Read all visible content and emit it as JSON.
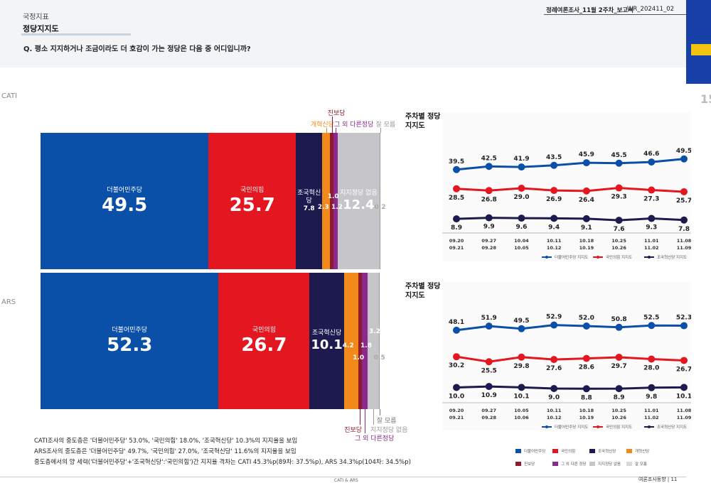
{
  "header": {
    "section_label": "국정지표",
    "section_title": "정당지지도",
    "report_name": "정례여론조사_11월 2주차_보고서",
    "report_code": "WR_202411_02",
    "question": "Q. 평소 지지하거나 조금이라도 더 호감이 가는 정당은 다음 중 어디입니까?",
    "page_number": "15"
  },
  "colors": {
    "democratic": "#0a4fa8",
    "ppp": "#e4161f",
    "rebuilding": "#1d1a4f",
    "reform": "#f28a1b",
    "progressive": "#8e1a2e",
    "other": "#8b2a8c",
    "none": "#c6c6ca",
    "dontknow": "#d9d9dc"
  },
  "chart_data": [
    {
      "type": "bar",
      "stacked": true,
      "orientation": "horizontal",
      "method": "CATI",
      "series": [
        {
          "key": "democratic",
          "name": "더불어민주당",
          "value": 49.5
        },
        {
          "key": "ppp",
          "name": "국민의힘",
          "value": 25.7
        },
        {
          "key": "rebuilding",
          "name": "조국혁신당",
          "value": 7.8
        },
        {
          "key": "reform",
          "name": "개혁신당",
          "value": 2.3
        },
        {
          "key": "progressive",
          "name": "진보당",
          "value": 1.0
        },
        {
          "key": "other",
          "name": "그 외 다른정당",
          "value": 1.2
        },
        {
          "key": "none",
          "name": "지지정당 없음",
          "value": 12.4
        },
        {
          "key": "dontknow",
          "name": "잘 모름",
          "value": 0.2
        }
      ],
      "xlim": [
        0,
        100
      ]
    },
    {
      "type": "bar",
      "stacked": true,
      "orientation": "horizontal",
      "method": "ARS",
      "series": [
        {
          "key": "democratic",
          "name": "더불어민주당",
          "value": 52.3
        },
        {
          "key": "ppp",
          "name": "국민의힘",
          "value": 26.7
        },
        {
          "key": "rebuilding",
          "name": "조국혁신당",
          "value": 10.1
        },
        {
          "key": "reform",
          "name": "개혁 신당",
          "value": 4.2
        },
        {
          "key": "progressive",
          "name": "진보당",
          "value": 1.0
        },
        {
          "key": "other",
          "name": "그 외 다른정당",
          "value": 1.8
        },
        {
          "key": "none",
          "name": "지지정당 없음",
          "value": 3.2
        },
        {
          "key": "dontknow",
          "name": "잘 모름",
          "value": 0.5
        }
      ],
      "xlim": [
        0,
        100
      ]
    },
    {
      "type": "line",
      "method": "CATI",
      "title": "주차별 정당지지도",
      "categories": [
        [
          "09.20",
          "09.21"
        ],
        [
          "09.27",
          "09.28"
        ],
        [
          "10.04",
          "10.05"
        ],
        [
          "10.11",
          "10.12"
        ],
        [
          "10.18",
          "10.19"
        ],
        [
          "10.25",
          "10.26"
        ],
        [
          "11.01",
          "11.02"
        ],
        [
          "11.08",
          "11.09"
        ]
      ],
      "series": [
        {
          "key": "democratic",
          "name": "더불어민주당 지지도",
          "values": [
            39.5,
            42.5,
            41.9,
            43.5,
            45.9,
            45.5,
            46.6,
            49.5
          ]
        },
        {
          "key": "ppp",
          "name": "국민의힘 지지도",
          "values": [
            28.5,
            26.8,
            29.0,
            26.9,
            26.4,
            29.3,
            27.3,
            25.7
          ]
        },
        {
          "key": "rebuilding",
          "name": "조국혁신당 지지도",
          "values": [
            8.9,
            9.9,
            9.6,
            9.4,
            9.1,
            7.6,
            9.3,
            7.8
          ]
        }
      ],
      "legend": "bottom"
    },
    {
      "type": "line",
      "method": "ARS",
      "title": "주차별 정당지지도",
      "categories": [
        [
          "09.20",
          "09.21"
        ],
        [
          "09.27",
          "09.28"
        ],
        [
          "10.05",
          "10.06"
        ],
        [
          "10.11",
          "10.12"
        ],
        [
          "10.18",
          "10.19"
        ],
        [
          "10.25",
          "10.26"
        ],
        [
          "11.01",
          "11.02"
        ],
        [
          "11.08",
          "11.09"
        ]
      ],
      "series": [
        {
          "key": "democratic",
          "name": "더불어민주당 지지도",
          "values": [
            48.1,
            51.9,
            49.5,
            52.9,
            52.0,
            50.8,
            52.5,
            52.3
          ]
        },
        {
          "key": "ppp",
          "name": "국민의힘 지지도",
          "values": [
            30.2,
            25.5,
            29.8,
            27.6,
            28.6,
            29.7,
            28.0,
            26.7
          ]
        },
        {
          "key": "rebuilding",
          "name": "조국혁신당 지지도",
          "values": [
            10.0,
            10.9,
            10.1,
            9.0,
            8.8,
            8.9,
            9.8,
            10.1
          ]
        }
      ],
      "legend": "bottom"
    }
  ],
  "legend_entries": [
    {
      "key": "democratic",
      "name": "더불어민주당"
    },
    {
      "key": "ppp",
      "name": "국민의힘"
    },
    {
      "key": "rebuilding",
      "name": "조국혁신당"
    },
    {
      "key": "reform",
      "name": "개혁신당"
    },
    {
      "key": "progressive",
      "name": "진보당"
    },
    {
      "key": "other",
      "name": "그 외 다른 정당"
    },
    {
      "key": "none",
      "name": "지지정당 없음"
    },
    {
      "key": "dontknow",
      "name": "잘 모름"
    }
  ],
  "footnotes": [
    "CATI조사의 중도층은 '더불어민주당' 53.0%, '국민의힘' 18.0%, '조국혁신당' 10.3%의 지지율을 보임",
    "ARS조사의 중도층은 '더불어민주당' 49.7%, '국민의힘' 27.0%, '조국혁신당' 11.6%의 지지율을 보임",
    "중도층에서의 양 세력('더불어민주당'+'조국혁신당':'국민의힘')간 지지율 격차는 CATI 45.3%p(89차: 37.5%p), ARS 34.3%p(104차: 34.5%p)"
  ],
  "footer": {
    "center": "CATI & ARS",
    "right": "여론조사동향 | 11"
  }
}
